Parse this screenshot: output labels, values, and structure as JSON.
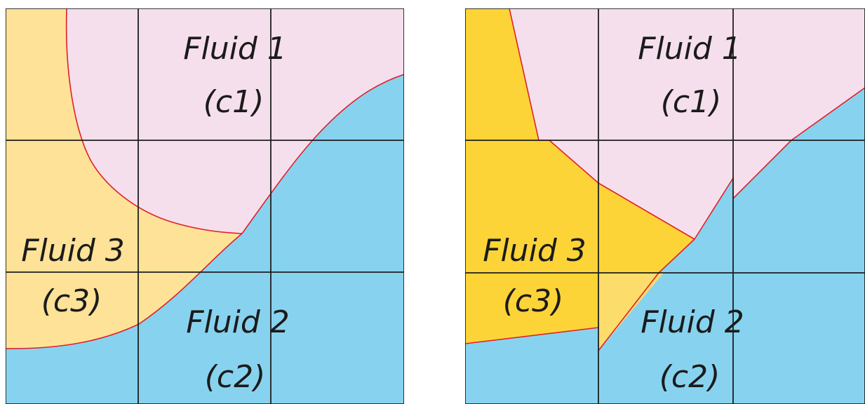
{
  "colors": {
    "fluid1": "#f6dfec",
    "fluid2": "#87d3ef",
    "fluid3_smooth": "#fde297",
    "fluid3_sharp": "#fdd437",
    "fluid3_light": "#fcdc6b",
    "interface": "#e0202a",
    "grid": "#1e1e1e"
  },
  "panels": [
    {
      "name": "smooth-interface",
      "fluid1": {
        "name": "Fluid 1",
        "symbol": "(c1)"
      },
      "fluid2": {
        "name": "Fluid 2",
        "symbol": "(c2)"
      },
      "fluid3": {
        "name": "Fluid 3",
        "symbol": "(c3)"
      }
    },
    {
      "name": "reconstructed-interface",
      "fluid1": {
        "name": "Fluid 1",
        "symbol": "(c1)"
      },
      "fluid2": {
        "name": "Fluid 2",
        "symbol": "(c2)"
      },
      "fluid3": {
        "name": "Fluid 3",
        "symbol": "(c3)"
      }
    }
  ]
}
